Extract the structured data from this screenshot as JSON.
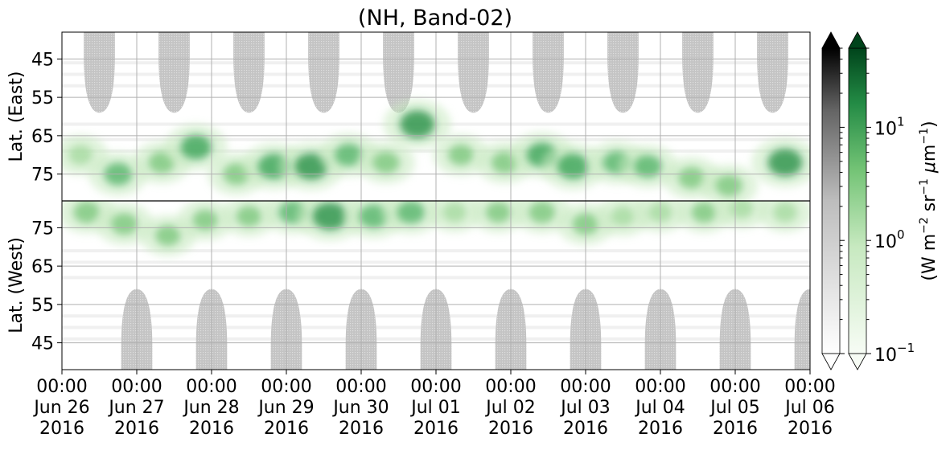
{
  "chart_data": {
    "type": "heatmap",
    "title": "(NH, Band-02)",
    "x_ticks": [
      {
        "time": "2016-06-26T00:00",
        "lines": [
          "00:00",
          "Jun 26",
          "2016"
        ]
      },
      {
        "time": "2016-06-27T00:00",
        "lines": [
          "00:00",
          "Jun 27",
          "2016"
        ]
      },
      {
        "time": "2016-06-28T00:00",
        "lines": [
          "00:00",
          "Jun 28",
          "2016"
        ]
      },
      {
        "time": "2016-06-29T00:00",
        "lines": [
          "00:00",
          "Jun 29",
          "2016"
        ]
      },
      {
        "time": "2016-06-30T00:00",
        "lines": [
          "00:00",
          "Jun 30",
          "2016"
        ]
      },
      {
        "time": "2016-07-01T00:00",
        "lines": [
          "00:00",
          "Jul 01",
          "2016"
        ]
      },
      {
        "time": "2016-07-02T00:00",
        "lines": [
          "00:00",
          "Jul 02",
          "2016"
        ]
      },
      {
        "time": "2016-07-03T00:00",
        "lines": [
          "00:00",
          "Jul 03",
          "2016"
        ]
      },
      {
        "time": "2016-07-04T00:00",
        "lines": [
          "00:00",
          "Jul 04",
          "2016"
        ]
      },
      {
        "time": "2016-07-05T00:00",
        "lines": [
          "00:00",
          "Jul 05",
          "2016"
        ]
      },
      {
        "time": "2016-07-06T00:00",
        "lines": [
          "00:00",
          "Jul 06",
          "2016"
        ]
      }
    ],
    "xlim": [
      "2016-06-26T00:00",
      "2016-07-06T00:00"
    ],
    "panels": [
      {
        "ylabel": "Lat. (East)",
        "ylim": [
          38,
          82
        ],
        "y_direction": "latitude increases downward",
        "y_ticks": [
          {
            "value": 45,
            "label": "45"
          },
          {
            "value": 55,
            "label": "55"
          },
          {
            "value": 65,
            "label": "65"
          },
          {
            "value": 75,
            "label": "75"
          }
        ]
      },
      {
        "ylabel": "Lat. (West)",
        "ylim": [
          82,
          38
        ],
        "y_direction": "latitude increases upward",
        "y_ticks": [
          {
            "value": 75,
            "label": "75"
          },
          {
            "value": 65,
            "label": "65"
          },
          {
            "value": 55,
            "label": "55"
          },
          {
            "value": 45,
            "label": "45"
          }
        ]
      }
    ],
    "grid": true,
    "colorbars": [
      {
        "name": "greys",
        "colormap": "Greys",
        "scale": "log",
        "range": [
          0.1,
          50
        ],
        "extend": "both",
        "top_color": "#000000",
        "bottom_color": "#ffffff"
      },
      {
        "name": "greens",
        "colormap": "Greens",
        "scale": "log",
        "range": [
          0.1,
          50
        ],
        "extend": "both",
        "top_color": "#00441b",
        "bottom_color": "#f7fcf5",
        "label": "(W m$^{-2}$ sr$^{-1}$ $\\mu$m$^{-1}$)",
        "ticks": [
          {
            "value": 0.1,
            "base": "10",
            "exp": "−1"
          },
          {
            "value": 1,
            "base": "10",
            "exp": "0"
          },
          {
            "value": 10,
            "base": "10",
            "exp": "1"
          }
        ]
      }
    ],
    "colorbar_label": {
      "text": "(W m",
      "sup1": "−2",
      "mid1": " sr",
      "sup2": "−1",
      "mu": "μ",
      "mid2": "m",
      "sup3": "−1",
      "end": ")"
    },
    "no_data_regions": {
      "description": "grey hatched polar-night/no-observation lobes",
      "east_daily_centers_hours": [
        12,
        36,
        60,
        84,
        108,
        132,
        156,
        180,
        204,
        228
      ],
      "west_daily_centers_hours": [
        24,
        48,
        72,
        96,
        120,
        144,
        168,
        192,
        216,
        240
      ],
      "lobe_halfwidth_hours": 5,
      "lobe_edge_latitude": 59
    },
    "emission_events": [
      {
        "panel": "east",
        "t_hours": 6,
        "lat": 70,
        "value": 2.0
      },
      {
        "panel": "east",
        "t_hours": 18,
        "lat": 75,
        "value": 3.5
      },
      {
        "panel": "east",
        "t_hours": 32,
        "lat": 72,
        "value": 3.0
      },
      {
        "panel": "east",
        "t_hours": 43,
        "lat": 68,
        "value": 4.5
      },
      {
        "panel": "east",
        "t_hours": 56,
        "lat": 75,
        "value": 3.0
      },
      {
        "panel": "east",
        "t_hours": 68,
        "lat": 73,
        "value": 5.0
      },
      {
        "panel": "east",
        "t_hours": 80,
        "lat": 73,
        "value": 5.5
      },
      {
        "panel": "east",
        "t_hours": 92,
        "lat": 70,
        "value": 3.5
      },
      {
        "panel": "east",
        "t_hours": 104,
        "lat": 72,
        "value": 3.0
      },
      {
        "panel": "east",
        "t_hours": 114,
        "lat": 62,
        "value": 6.0
      },
      {
        "panel": "east",
        "t_hours": 128,
        "lat": 70,
        "value": 2.5
      },
      {
        "panel": "east",
        "t_hours": 142,
        "lat": 72,
        "value": 3.0
      },
      {
        "panel": "east",
        "t_hours": 154,
        "lat": 70,
        "value": 4.5
      },
      {
        "panel": "east",
        "t_hours": 164,
        "lat": 73,
        "value": 5.0
      },
      {
        "panel": "east",
        "t_hours": 178,
        "lat": 72,
        "value": 3.5
      },
      {
        "panel": "east",
        "t_hours": 188,
        "lat": 73,
        "value": 3.5
      },
      {
        "panel": "east",
        "t_hours": 202,
        "lat": 76,
        "value": 3.0
      },
      {
        "panel": "east",
        "t_hours": 214,
        "lat": 78,
        "value": 3.0
      },
      {
        "panel": "east",
        "t_hours": 232,
        "lat": 72,
        "value": 6.0
      },
      {
        "panel": "west",
        "t_hours": 8,
        "lat": 79,
        "value": 3.0
      },
      {
        "panel": "west",
        "t_hours": 20,
        "lat": 76,
        "value": 3.0
      },
      {
        "panel": "west",
        "t_hours": 34,
        "lat": 73,
        "value": 2.5
      },
      {
        "panel": "west",
        "t_hours": 46,
        "lat": 77,
        "value": 2.5
      },
      {
        "panel": "west",
        "t_hours": 60,
        "lat": 78,
        "value": 2.5
      },
      {
        "panel": "west",
        "t_hours": 74,
        "lat": 79,
        "value": 3.5
      },
      {
        "panel": "west",
        "t_hours": 86,
        "lat": 78,
        "value": 6.0
      },
      {
        "panel": "west",
        "t_hours": 100,
        "lat": 78,
        "value": 4.0
      },
      {
        "panel": "west",
        "t_hours": 112,
        "lat": 79,
        "value": 3.5
      },
      {
        "panel": "west",
        "t_hours": 126,
        "lat": 79,
        "value": 2.0
      },
      {
        "panel": "west",
        "t_hours": 140,
        "lat": 79,
        "value": 2.5
      },
      {
        "panel": "west",
        "t_hours": 154,
        "lat": 79,
        "value": 3.0
      },
      {
        "panel": "west",
        "t_hours": 168,
        "lat": 76,
        "value": 3.0
      },
      {
        "panel": "west",
        "t_hours": 180,
        "lat": 78,
        "value": 2.0
      },
      {
        "panel": "west",
        "t_hours": 192,
        "lat": 79,
        "value": 2.0
      },
      {
        "panel": "west",
        "t_hours": 206,
        "lat": 79,
        "value": 2.5
      },
      {
        "panel": "west",
        "t_hours": 218,
        "lat": 80,
        "value": 2.0
      },
      {
        "panel": "west",
        "t_hours": 232,
        "lat": 79,
        "value": 2.0
      }
    ]
  }
}
